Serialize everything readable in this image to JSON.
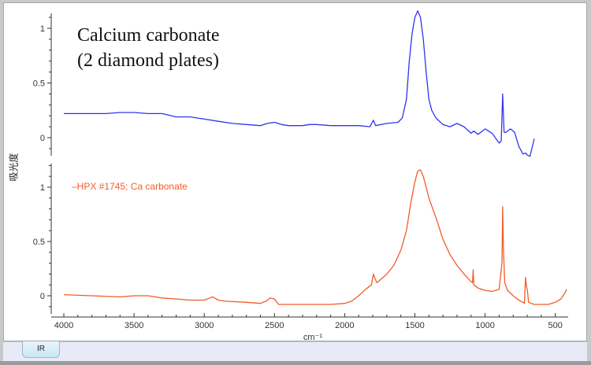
{
  "window": {
    "tab_label": "IR"
  },
  "plot": {
    "title_line1": "Calcium carbonate",
    "title_line2": "(2 diamond plates)",
    "legend_label": "–HPX #1745; Ca carbonate",
    "ylabel": "吸光度",
    "xlabel": "cm⁻¹",
    "x_ticks": [
      "4000",
      "3500",
      "3000",
      "2500",
      "2000",
      "1500",
      "1000",
      "500"
    ],
    "top_y_ticks": [
      "1",
      "0.5",
      "0"
    ],
    "bottom_y_ticks": [
      "1",
      "0.5",
      "0"
    ],
    "colors": {
      "top_series": "#3333ee",
      "bottom_series": "#f25c2a",
      "axis": "#333333"
    }
  },
  "chart_data": [
    {
      "type": "line",
      "title": "Calcium carbonate (2 diamond plates)",
      "xlabel": "cm⁻¹",
      "ylabel": "吸光度",
      "xlim": [
        4000,
        400
      ],
      "ylim": [
        -0.25,
        1.2
      ],
      "grid": false,
      "series": [
        {
          "name": "Calcium carbonate (2 diamond plates)",
          "color": "#3333ee",
          "x": [
            4000,
            3800,
            3700,
            3600,
            3500,
            3400,
            3300,
            3200,
            3100,
            3000,
            2900,
            2800,
            2700,
            2600,
            2550,
            2500,
            2450,
            2400,
            2300,
            2250,
            2200,
            2100,
            2000,
            1900,
            1820,
            1795,
            1780,
            1700,
            1620,
            1590,
            1560,
            1540,
            1520,
            1500,
            1480,
            1460,
            1440,
            1420,
            1400,
            1380,
            1350,
            1300,
            1250,
            1200,
            1150,
            1100,
            1080,
            1050,
            1000,
            950,
            900,
            885,
            875,
            865,
            850,
            820,
            790,
            760,
            730,
            710,
            700,
            680,
            650
          ],
          "y": [
            0.22,
            0.22,
            0.22,
            0.23,
            0.23,
            0.22,
            0.22,
            0.19,
            0.19,
            0.17,
            0.15,
            0.13,
            0.12,
            0.11,
            0.13,
            0.14,
            0.12,
            0.11,
            0.11,
            0.12,
            0.12,
            0.11,
            0.11,
            0.11,
            0.1,
            0.16,
            0.11,
            0.13,
            0.14,
            0.18,
            0.35,
            0.7,
            0.95,
            1.1,
            1.16,
            1.1,
            0.9,
            0.6,
            0.35,
            0.25,
            0.18,
            0.12,
            0.1,
            0.13,
            0.1,
            0.04,
            0.06,
            0.03,
            0.08,
            0.04,
            -0.05,
            -0.03,
            0.4,
            0.05,
            0.05,
            0.08,
            0.05,
            -0.08,
            -0.15,
            -0.14,
            -0.16,
            -0.17,
            -0.01
          ]
        },
        {
          "name": "HPX #1745; Ca carbonate",
          "color": "#f25c2a",
          "x": [
            4000,
            3800,
            3600,
            3500,
            3400,
            3300,
            3200,
            3100,
            3000,
            2960,
            2940,
            2900,
            2850,
            2700,
            2600,
            2560,
            2530,
            2500,
            2470,
            2300,
            2100,
            2000,
            1950,
            1900,
            1850,
            1810,
            1795,
            1785,
            1770,
            1700,
            1650,
            1600,
            1560,
            1530,
            1500,
            1480,
            1460,
            1440,
            1420,
            1400,
            1350,
            1300,
            1250,
            1200,
            1150,
            1100,
            1090,
            1085,
            1080,
            1050,
            1000,
            950,
            900,
            880,
            875,
            870,
            860,
            840,
            800,
            760,
            730,
            720,
            712,
            705,
            700,
            690,
            650,
            600,
            550,
            500,
            460,
            430,
            420
          ],
          "y": [
            0.01,
            0.0,
            -0.01,
            0.0,
            0.0,
            -0.02,
            -0.03,
            -0.04,
            -0.04,
            -0.02,
            -0.01,
            -0.04,
            -0.05,
            -0.06,
            -0.07,
            -0.05,
            -0.02,
            -0.03,
            -0.08,
            -0.08,
            -0.08,
            -0.07,
            -0.05,
            0.0,
            0.06,
            0.1,
            0.2,
            0.16,
            0.12,
            0.2,
            0.28,
            0.42,
            0.6,
            0.85,
            1.05,
            1.15,
            1.16,
            1.1,
            1.0,
            0.9,
            0.72,
            0.52,
            0.38,
            0.28,
            0.2,
            0.13,
            0.12,
            0.24,
            0.1,
            0.07,
            0.05,
            0.04,
            0.06,
            0.3,
            0.82,
            0.45,
            0.12,
            0.05,
            0.0,
            -0.04,
            -0.06,
            -0.07,
            0.17,
            0.08,
            0.06,
            -0.06,
            -0.08,
            -0.08,
            -0.08,
            -0.06,
            -0.03,
            0.03,
            0.06
          ]
        }
      ],
      "panels": [
        {
          "name": "top",
          "series": "Calcium carbonate (2 diamond plates)",
          "y_ticks": [
            0,
            0.5,
            1
          ]
        },
        {
          "name": "bottom",
          "series": "HPX #1745; Ca carbonate",
          "y_ticks": [
            0,
            0.5,
            1
          ]
        }
      ],
      "annotations": [
        "Calcium carbonate",
        "(2 diamond plates)",
        "HPX #1745; Ca carbonate"
      ]
    }
  ]
}
